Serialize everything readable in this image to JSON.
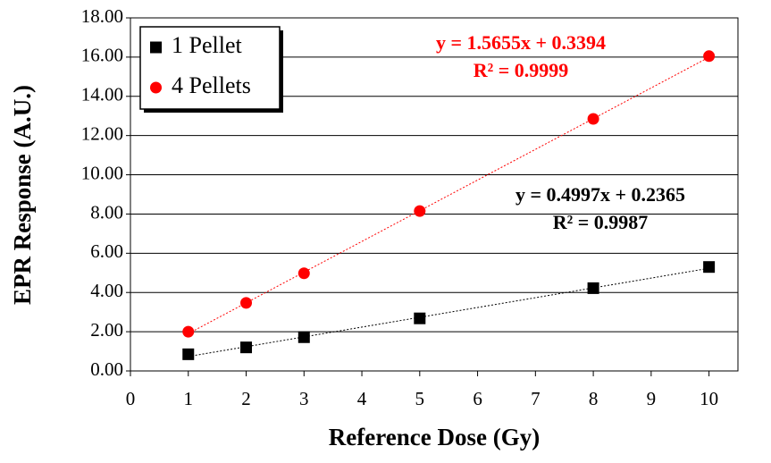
{
  "chart_data": {
    "type": "scatter",
    "xlabel": "Reference Dose (Gy)",
    "ylabel": "EPR Response (A.U.)",
    "xlim": [
      0,
      10.5
    ],
    "xticks": [
      0,
      1,
      2,
      3,
      4,
      5,
      6,
      7,
      8,
      9,
      10
    ],
    "ylim": [
      0,
      18
    ],
    "yticks": [
      {
        "value": 0,
        "label": "0.00"
      },
      {
        "value": 2,
        "label": "2.00"
      },
      {
        "value": 4,
        "label": "4.00"
      },
      {
        "value": 6,
        "label": "6.00"
      },
      {
        "value": 8,
        "label": "8.00"
      },
      {
        "value": 10,
        "label": "10.00"
      },
      {
        "value": 12,
        "label": "12.00"
      },
      {
        "value": 14,
        "label": "14.00"
      },
      {
        "value": 16,
        "label": "16.00"
      },
      {
        "value": 18,
        "label": "18.00"
      }
    ],
    "grid": true,
    "legend": "upper left",
    "series": [
      {
        "name": "1 Pellet",
        "color": "#000000",
        "marker": "square",
        "x": [
          1,
          2,
          3,
          5,
          8,
          10
        ],
        "values": [
          0.85,
          1.2,
          1.72,
          2.68,
          4.22,
          5.3
        ],
        "trendline": {
          "slope": 0.4997,
          "intercept": 0.2365,
          "label": "y = 0.4997x + 0.2365",
          "r2_label": "R² = 0.9987"
        }
      },
      {
        "name": "4 Pellets",
        "color": "#ff0000",
        "marker": "circle",
        "x": [
          1,
          2,
          3,
          5,
          8,
          10
        ],
        "values": [
          2.0,
          3.47,
          4.98,
          8.15,
          12.85,
          16.05
        ],
        "trendline": {
          "slope": 1.5655,
          "intercept": 0.3394,
          "label": "y = 1.5655x + 0.3394",
          "r2_label": "R² = 0.9999"
        }
      }
    ]
  }
}
